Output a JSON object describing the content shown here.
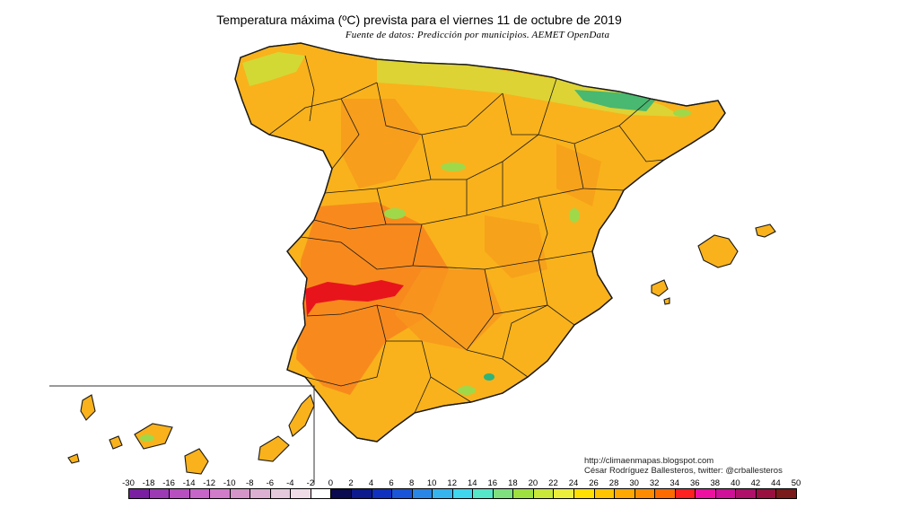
{
  "title": "Temperatura máxima (ºC) prevista para el viernes 11 de octubre de 2019",
  "subtitle": "Fuente de datos: Predicción por municipios. AEMET OpenData",
  "credits": {
    "website": "http://climaenmapas.blogspot.com",
    "author": "César Rodríguez Ballesteros, twitter: @crballesteros"
  },
  "legend": {
    "labels": [
      "-30",
      "-18",
      "-16",
      "-14",
      "-12",
      "-10",
      "-8",
      "-6",
      "-4",
      "-2",
      "0",
      "2",
      "4",
      "6",
      "8",
      "10",
      "12",
      "14",
      "16",
      "18",
      "20",
      "22",
      "24",
      "26",
      "28",
      "30",
      "32",
      "34",
      "36",
      "38",
      "40",
      "42",
      "44",
      "50"
    ],
    "colors": [
      "#7a1fa2",
      "#9c3ab5",
      "#b84fc0",
      "#c765c8",
      "#d07cc9",
      "#d595c8",
      "#dcb0d2",
      "#e4c8dc",
      "#eedbe6",
      "#ffffff",
      "#0a0a50",
      "#0c1a8e",
      "#1030c0",
      "#1a54d8",
      "#2a86e6",
      "#36b4ee",
      "#3fd6ee",
      "#56e6c8",
      "#7ee07e",
      "#9ee040",
      "#c8e83a",
      "#ecee3c",
      "#ffe000",
      "#ffc400",
      "#ffa800",
      "#ff8c00",
      "#ff6a00",
      "#ff2020",
      "#ee10a0",
      "#d01098",
      "#b00f6a",
      "#980f40",
      "#7a1a1a"
    ]
  },
  "regions": {
    "peninsula": "Península Ibérica (España)",
    "balearic": "Islas Baleares",
    "canary": "Islas Canarias"
  },
  "colors": {
    "dominant": "#f9b21b",
    "hot": "#f7851e",
    "hottest": "#e8141c",
    "cool": "#9fd94a",
    "coolest": "#2fb37a",
    "borders": "#1a1a1a"
  }
}
